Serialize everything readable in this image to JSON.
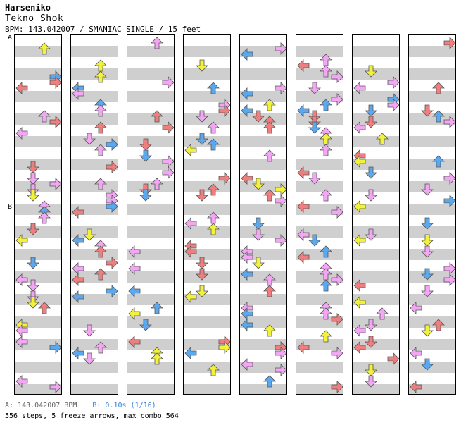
{
  "header": {
    "artist": "Harseniko",
    "song": "Tekno Shok",
    "meta": "BPM: 143.042007 / SMANIAC SINGLE / 15 feet"
  },
  "markers": {
    "a": "A",
    "b": "B"
  },
  "footer": {
    "bpm_a": "A: 143.042007 BPM",
    "bpm_b": "B: 0.10s (1/16)",
    "stats": "556 steps, 5 freeze arrows, max combo 564"
  },
  "colors": {
    "quarter": "#ef7f7f",
    "eighth": "#5ba8ee",
    "sixteenth": "#f3a6f3",
    "twelfth": "#f2f23a",
    "freeze": "#9ce09c"
  },
  "chart": {
    "columns": 8,
    "measures_per_column": 8,
    "lanes": [
      "left",
      "down",
      "up",
      "right"
    ]
  }
}
